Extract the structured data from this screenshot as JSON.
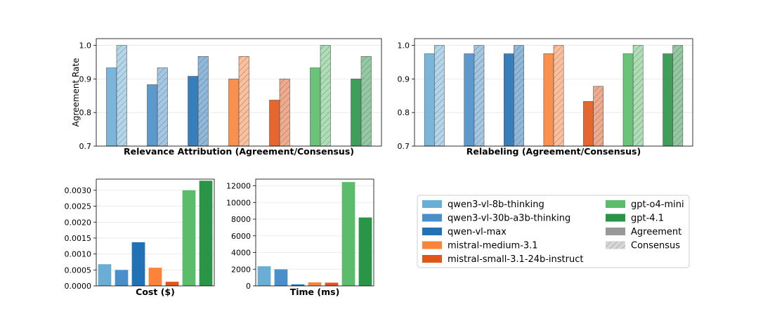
{
  "models": [
    {
      "name": "qwen3-vl-8b-thinking",
      "color": "#6aaed6"
    },
    {
      "name": "qwen3-vl-30b-a3b-thinking",
      "color": "#4a8fc9"
    },
    {
      "name": "qwen-vl-max",
      "color": "#2171b5"
    },
    {
      "name": "mistral-medium-3.1",
      "color": "#f9843a"
    },
    {
      "name": "mistral-small-3.1-24b-instruct",
      "color": "#e1571a"
    },
    {
      "name": "gpt-o4-mini",
      "color": "#5bbd6b"
    },
    {
      "name": "gpt-4.1",
      "color": "#2a9447"
    }
  ],
  "legend_extra": [
    {
      "name": "Agreement",
      "color": "#999999",
      "hatch": false
    },
    {
      "name": "Consensus",
      "color": "#bbbbbb",
      "hatch": true
    }
  ],
  "chart_data": [
    {
      "id": "relevance",
      "type": "bar",
      "title": "Relevance Attribution  (Agreement/Consensus)",
      "ylabel": "Agreement Rate",
      "ylim": [
        0.7,
        1.02
      ],
      "yticks": [
        "0.7",
        "0.8",
        "0.9",
        "1.0"
      ],
      "categories": [
        "qwen3-vl-8b-thinking",
        "qwen3-vl-30b-a3b-thinking",
        "qwen-vl-max",
        "mistral-medium-3.1",
        "mistral-small-3.1-24b-instruct",
        "gpt-o4-mini",
        "gpt-4.1"
      ],
      "series": [
        {
          "name": "Agreement",
          "values": [
            0.933,
            0.883,
            0.908,
            0.9,
            0.837,
            0.933,
            0.9
          ]
        },
        {
          "name": "Consensus",
          "values": [
            1.0,
            0.933,
            0.967,
            0.967,
            0.9,
            1.0,
            0.967
          ]
        }
      ]
    },
    {
      "id": "relabel",
      "type": "bar",
      "title": "Relabeling  (Agreement/Consensus)",
      "ylabel": "",
      "ylim": [
        0.7,
        1.02
      ],
      "yticks": [
        "0.7",
        "0.8",
        "0.9",
        "1.0"
      ],
      "categories": [
        "qwen3-vl-8b-thinking",
        "qwen3-vl-30b-a3b-thinking",
        "qwen-vl-max",
        "mistral-medium-3.1",
        "mistral-small-3.1-24b-instruct",
        "gpt-o4-mini",
        "gpt-4.1"
      ],
      "series": [
        {
          "name": "Agreement",
          "values": [
            0.975,
            0.975,
            0.975,
            0.975,
            0.833,
            0.975,
            0.975
          ]
        },
        {
          "name": "Consensus",
          "values": [
            1.0,
            1.0,
            1.0,
            1.0,
            0.878,
            1.0,
            1.0
          ]
        }
      ]
    },
    {
      "id": "cost",
      "type": "bar",
      "title": "Cost ($)",
      "ylabel": "",
      "ylim": [
        0,
        0.00335
      ],
      "yticks": [
        "0.0000",
        "0.0005",
        "0.0010",
        "0.0015",
        "0.0020",
        "0.0025",
        "0.0030"
      ],
      "categories": [
        "qwen3-vl-8b-thinking",
        "qwen3-vl-30b-a3b-thinking",
        "qwen-vl-max",
        "mistral-medium-3.1",
        "mistral-small-3.1-24b-instruct",
        "gpt-o4-mini",
        "gpt-4.1"
      ],
      "values": [
        0.00068,
        0.0005,
        0.00137,
        0.00057,
        0.00013,
        0.003,
        0.0033
      ]
    },
    {
      "id": "time",
      "type": "bar",
      "title": "Time (ms)",
      "ylabel": "",
      "ylim": [
        0,
        12800
      ],
      "yticks": [
        "0",
        "2000",
        "4000",
        "6000",
        "8000",
        "10000",
        "12000"
      ],
      "categories": [
        "qwen3-vl-8b-thinking",
        "qwen3-vl-30b-a3b-thinking",
        "qwen-vl-max",
        "mistral-medium-3.1",
        "mistral-small-3.1-24b-instruct",
        "gpt-o4-mini",
        "gpt-4.1"
      ],
      "values": [
        2350,
        1980,
        180,
        420,
        390,
        12450,
        8200
      ]
    }
  ]
}
